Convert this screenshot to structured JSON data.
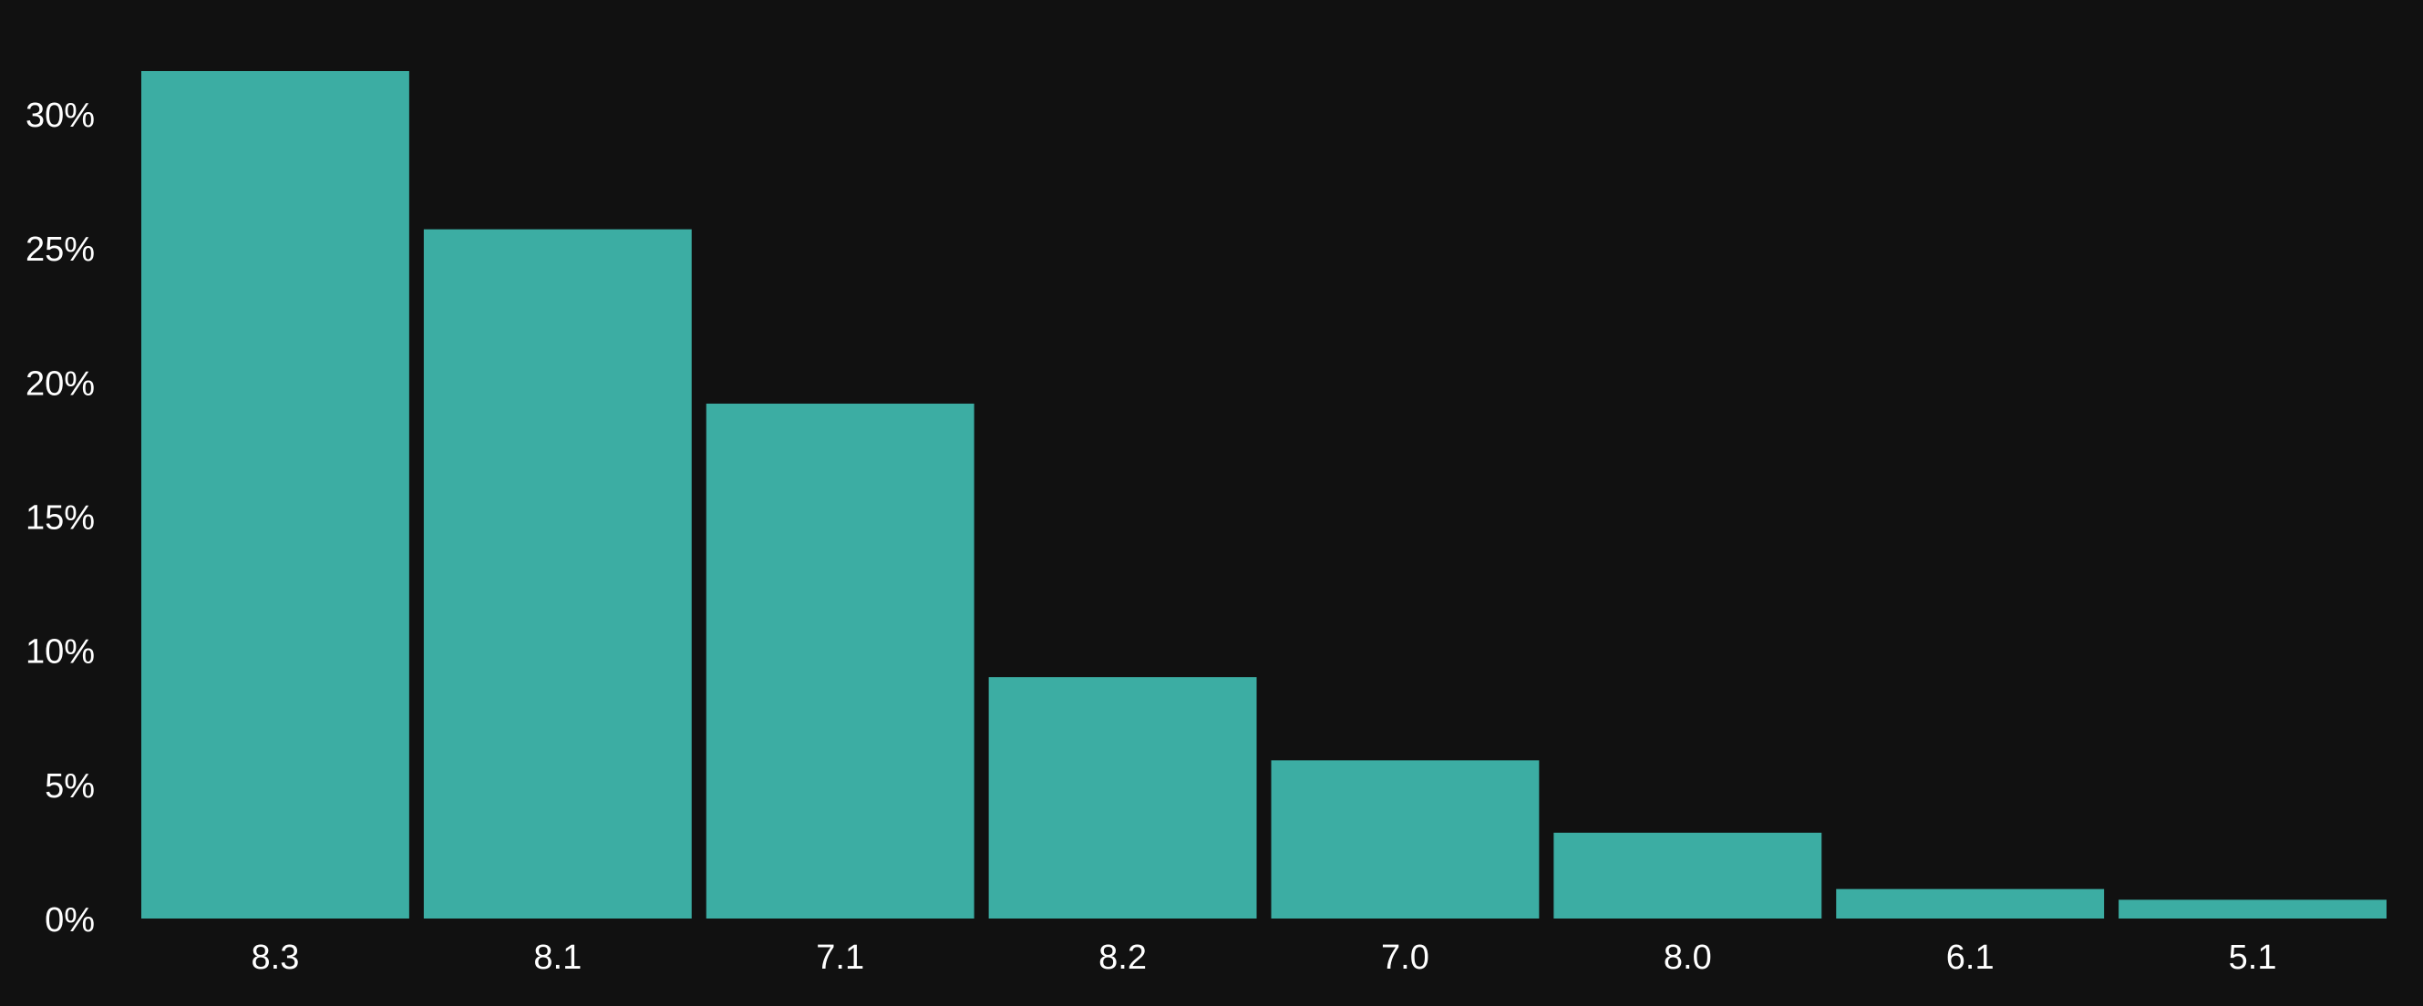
{
  "colors": {
    "background": "#111111",
    "bar": "#3cada3",
    "text": "#ffffff"
  },
  "chart_data": {
    "type": "bar",
    "title": "",
    "xlabel": "",
    "ylabel": "",
    "categories": [
      "8.3",
      "8.1",
      "7.1",
      "8.2",
      "7.0",
      "8.0",
      "6.1",
      "5.1"
    ],
    "values": [
      31.6,
      25.7,
      19.2,
      9.0,
      5.9,
      3.2,
      1.1,
      0.7
    ],
    "value_unit": "%",
    "ylim": [
      0,
      31.6
    ],
    "yticks": [
      0,
      5,
      10,
      15,
      20,
      25,
      30
    ],
    "ytick_labels": [
      "0%",
      "5%",
      "10%",
      "15%",
      "20%",
      "25%",
      "30%"
    ],
    "grid": false,
    "legend": "none"
  }
}
